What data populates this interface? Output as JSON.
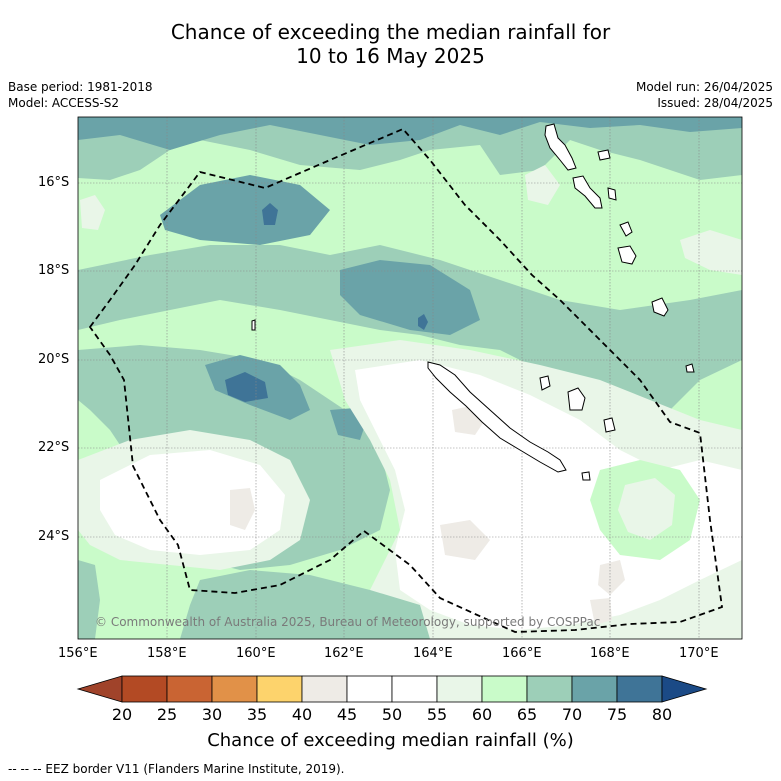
{
  "title": {
    "line1": "Chance of exceeding the median rainfall for",
    "line2": "10 to 16 May 2025"
  },
  "meta": {
    "base_period": "Base period: 1981-2018",
    "model": "Model: ACCESS-S2",
    "model_run": "Model run: 26/04/2025",
    "issued": "Issued: 28/04/2025"
  },
  "axes": {
    "lat_labels": [
      "16°S",
      "18°S",
      "20°S",
      "22°S",
      "24°S"
    ],
    "lon_labels": [
      "156°E",
      "158°E",
      "160°E",
      "162°E",
      "164°E",
      "166°E",
      "168°E",
      "170°E"
    ]
  },
  "copyright": "© Commonwealth of Australia 2025, Bureau of Meteorology, supported by COSPPac",
  "colorbar": {
    "labels": [
      "20",
      "25",
      "30",
      "35",
      "40",
      "45",
      "50",
      "55",
      "60",
      "65",
      "70",
      "75",
      "80"
    ],
    "colors": [
      "#a0432a",
      "#b34a24",
      "#c96433",
      "#e19148",
      "#fdd36c",
      "#eeebe6",
      "#ffffff",
      "#ffffff",
      "#e9f6e8",
      "#c9fbc9",
      "#9dcfb8",
      "#6aa3a8",
      "#3f7497",
      "#1b4a86"
    ],
    "title": "Chance of exceeding median rainfall (%)"
  },
  "footer": "-- -- -- EEZ border V11 (Flanders Marine Institute, 2019).",
  "map_colors": {
    "c55": "#ffffff",
    "c60": "#e9f6e8",
    "c65": "#c9fbc9",
    "c70": "#9dcfb8",
    "c75": "#6aa3a8",
    "c80": "#3f7497",
    "c45": "#eeebe6"
  }
}
